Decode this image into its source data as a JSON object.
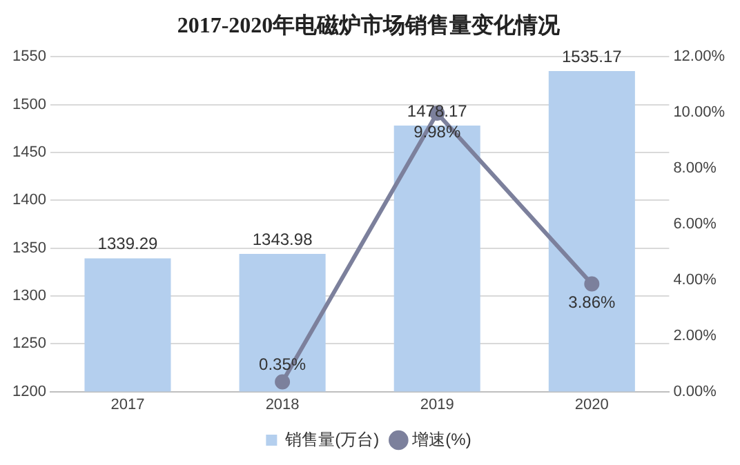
{
  "chart_data": {
    "type": "bar",
    "title": "2017-2020年电磁炉市场销售量变化情况",
    "categories": [
      "2017",
      "2018",
      "2019",
      "2020"
    ],
    "series": [
      {
        "name": "销售量(万台)",
        "color": "#b4cfee",
        "values": [
          1339.29,
          1343.98,
          1478.17,
          1535.17
        ],
        "value_labels": [
          "1339.29",
          "1343.98",
          "1478.17",
          "1535.17"
        ]
      },
      {
        "name": "增速(%)",
        "type": "line",
        "axis": "y2",
        "color": "#7c809c",
        "values": [
          null,
          0.35,
          9.98,
          3.86
        ],
        "value_labels": [
          null,
          "0.35%",
          "9.98%",
          "3.86%"
        ]
      }
    ],
    "ylim": [
      1200,
      1550
    ],
    "yticks": [
      1200,
      1250,
      1300,
      1350,
      1400,
      1450,
      1500,
      1550
    ],
    "y2lim": [
      0,
      12
    ],
    "y2ticks": [
      {
        "value": 0,
        "label": "0.00%"
      },
      {
        "value": 2,
        "label": "2.00%"
      },
      {
        "value": 4,
        "label": "4.00%"
      },
      {
        "value": 6,
        "label": "6.00%"
      },
      {
        "value": 8,
        "label": "8.00%"
      },
      {
        "value": 10,
        "label": "10.00%"
      },
      {
        "value": 12,
        "label": "12.00%"
      }
    ],
    "grid": "y",
    "legend": "bottom",
    "marker": "circle",
    "line_style": "solid"
  }
}
